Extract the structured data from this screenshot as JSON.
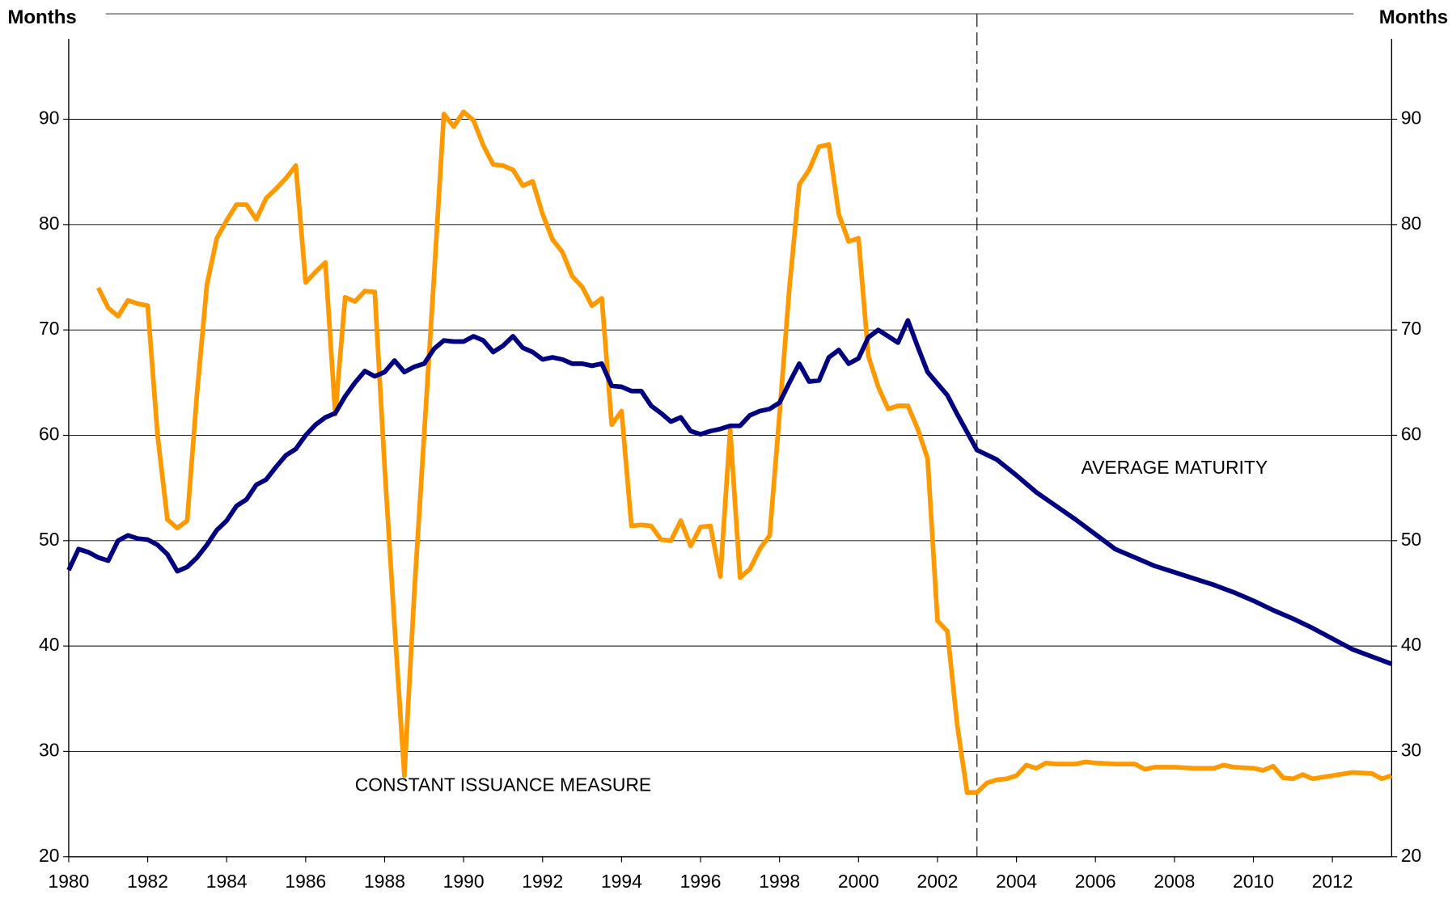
{
  "chart_data": {
    "type": "line",
    "y_label": "Months",
    "y2_label": "Months",
    "xlim": [
      1980,
      2013.5
    ],
    "xticks": [
      1980,
      1982,
      1984,
      1986,
      1988,
      1990,
      1992,
      1994,
      1996,
      1998,
      2000,
      2002,
      2004,
      2006,
      2008,
      2010,
      2012
    ],
    "ylim": [
      20,
      100
    ],
    "yticks": [
      20,
      30,
      40,
      50,
      60,
      70,
      80,
      90
    ],
    "y2lim": [
      20,
      100
    ],
    "y2ticks": [
      20,
      30,
      40,
      50,
      60,
      70,
      80,
      90
    ],
    "grid": true,
    "vline_x": 2003,
    "annotations": [
      {
        "text": "AVERAGE MATURITY",
        "x": 2008.0,
        "y": 56.8
      },
      {
        "text": "CONSTANT ISSUANCE MEASURE",
        "x": 1991.0,
        "y": 26.7
      }
    ],
    "series": [
      {
        "color": "#000080",
        "x": [
          1980.0,
          1980.25,
          1980.5,
          1980.75,
          1981.0,
          1981.25,
          1981.5,
          1981.75,
          1982.0,
          1982.25,
          1982.5,
          1982.75,
          1983.0,
          1983.25,
          1983.5,
          1983.75,
          1984.0,
          1984.25,
          1984.5,
          1984.75,
          1985.0,
          1985.25,
          1985.5,
          1985.75,
          1986.0,
          1986.25,
          1986.5,
          1986.75,
          1987.0,
          1987.25,
          1987.5,
          1987.75,
          1988.0,
          1988.25,
          1988.5,
          1988.75,
          1989.0,
          1989.25,
          1989.5,
          1989.75,
          1990.0,
          1990.25,
          1990.5,
          1990.75,
          1991.0,
          1991.25,
          1991.5,
          1991.75,
          1992.0,
          1992.25,
          1992.5,
          1992.75,
          1993.0,
          1993.25,
          1993.5,
          1993.75,
          1994.0,
          1994.25,
          1994.5,
          1994.75,
          1995.0,
          1995.25,
          1995.5,
          1995.75,
          1996.0,
          1996.25,
          1996.5,
          1996.75,
          1997.0,
          1997.25,
          1997.5,
          1997.75,
          1998.0,
          1998.25,
          1998.5,
          1998.75,
          1999.0,
          1999.25,
          1999.5,
          1999.75,
          2000.0,
          2000.25,
          2000.5,
          2000.75,
          2001.0,
          2001.25,
          2001.5,
          2001.75,
          2002.0,
          2002.25,
          2002.5,
          2002.75,
          2003.0,
          2003.5,
          2004.0,
          2004.5,
          2005.0,
          2005.5,
          2006.0,
          2006.5,
          2007.0,
          2007.5,
          2008.0,
          2008.5,
          2009.0,
          2009.5,
          2010.0,
          2010.5,
          2011.0,
          2011.5,
          2012.0,
          2012.5,
          2013.0,
          2013.5
        ],
        "values": [
          47.2,
          49.2,
          48.9,
          48.4,
          48.1,
          50.0,
          50.5,
          50.2,
          50.1,
          49.6,
          48.7,
          47.1,
          47.5,
          48.4,
          49.6,
          51.0,
          51.9,
          53.3,
          53.9,
          55.3,
          55.8,
          57.0,
          58.1,
          58.7,
          60.0,
          61.0,
          61.7,
          62.1,
          63.7,
          65.0,
          66.1,
          65.6,
          66.0,
          67.1,
          66.0,
          66.5,
          66.8,
          68.2,
          69.0,
          68.9,
          68.9,
          69.4,
          69.0,
          67.9,
          68.5,
          69.4,
          68.3,
          67.9,
          67.2,
          67.4,
          67.2,
          66.8,
          66.8,
          66.6,
          66.8,
          64.7,
          64.6,
          64.2,
          64.2,
          62.8,
          62.1,
          61.3,
          61.7,
          60.4,
          60.1,
          60.4,
          60.6,
          60.9,
          60.9,
          61.9,
          62.3,
          62.5,
          63.1,
          65.0,
          66.8,
          65.1,
          65.2,
          67.4,
          68.1,
          66.8,
          67.3,
          69.3,
          70.0,
          69.4,
          68.8,
          70.9,
          68.4,
          66.0,
          64.9,
          63.8,
          62.0,
          60.3,
          58.6,
          57.7,
          56.2,
          54.6,
          53.3,
          52.0,
          50.6,
          49.2,
          48.4,
          47.6,
          47.0,
          46.4,
          45.8,
          45.1,
          44.3,
          43.4,
          42.6,
          41.7,
          40.7,
          39.7,
          39.0,
          38.3
        ]
      },
      {
        "color": "#FF9900",
        "x": [
          1980.75,
          1981.0,
          1981.25,
          1981.5,
          1981.75,
          1982.0,
          1982.25,
          1982.5,
          1982.75,
          1983.0,
          1983.25,
          1983.5,
          1983.75,
          1984.0,
          1984.25,
          1984.5,
          1984.75,
          1985.0,
          1985.25,
          1985.5,
          1985.75,
          1986.0,
          1986.25,
          1986.5,
          1986.75,
          1987.0,
          1987.25,
          1987.5,
          1987.75,
          1988.0,
          1988.25,
          1988.5,
          1988.75,
          1989.0,
          1989.25,
          1989.5,
          1989.75,
          1990.0,
          1990.25,
          1990.5,
          1990.75,
          1991.0,
          1991.25,
          1991.5,
          1991.75,
          1992.0,
          1992.25,
          1992.5,
          1992.75,
          1993.0,
          1993.25,
          1993.5,
          1993.75,
          1994.0,
          1994.25,
          1994.5,
          1994.75,
          1995.0,
          1995.25,
          1995.5,
          1995.75,
          1996.0,
          1996.25,
          1996.5,
          1996.75,
          1997.0,
          1997.25,
          1997.5,
          1997.75,
          1998.0,
          1998.25,
          1998.5,
          1998.75,
          1999.0,
          1999.25,
          1999.5,
          1999.75,
          2000.0,
          2000.25,
          2000.5,
          2000.75,
          2001.0,
          2001.25,
          2001.5,
          2001.75,
          2002.0,
          2002.25,
          2002.5,
          2002.75,
          2003.0,
          2003.25,
          2003.5,
          2003.75,
          2004.0,
          2004.25,
          2004.5,
          2004.75,
          2005.0,
          2005.5,
          2005.75,
          2006.0,
          2006.5,
          2007.0,
          2007.25,
          2007.5,
          2008.0,
          2008.5,
          2009.0,
          2009.25,
          2009.5,
          2010.0,
          2010.25,
          2010.5,
          2010.75,
          2011.0,
          2011.25,
          2011.5,
          2012.0,
          2012.5,
          2013.0,
          2013.25,
          2013.5
        ],
        "values": [
          74.0,
          72.1,
          71.3,
          72.8,
          72.5,
          72.3,
          60.0,
          52.0,
          51.2,
          51.9,
          64.0,
          74.3,
          78.7,
          80.4,
          81.9,
          81.9,
          80.5,
          82.5,
          83.4,
          84.4,
          85.6,
          74.5,
          75.5,
          76.4,
          62.0,
          73.1,
          72.7,
          73.7,
          73.6,
          57.0,
          42.0,
          27.7,
          45.0,
          60.0,
          75.0,
          90.5,
          89.3,
          90.7,
          89.9,
          87.5,
          85.7,
          85.6,
          85.2,
          83.7,
          84.1,
          81.0,
          78.6,
          77.4,
          75.1,
          74.1,
          72.3,
          73.0,
          61.0,
          62.3,
          51.4,
          51.5,
          51.4,
          50.1,
          50.0,
          51.9,
          49.5,
          51.3,
          51.4,
          46.6,
          60.5,
          46.5,
          47.3,
          49.2,
          50.5,
          62.0,
          74.0,
          83.8,
          85.2,
          87.4,
          87.6,
          81.0,
          78.4,
          78.7,
          67.5,
          64.6,
          62.5,
          62.8,
          62.8,
          60.6,
          57.8,
          42.4,
          41.4,
          32.5,
          26.1,
          26.1,
          27.0,
          27.3,
          27.4,
          27.7,
          28.7,
          28.4,
          28.9,
          28.8,
          28.8,
          29.0,
          28.9,
          28.8,
          28.8,
          28.3,
          28.5,
          28.5,
          28.4,
          28.4,
          28.7,
          28.5,
          28.4,
          28.2,
          28.6,
          27.5,
          27.4,
          27.8,
          27.4,
          27.7,
          28.0,
          27.9,
          27.4,
          27.7
        ]
      }
    ]
  }
}
